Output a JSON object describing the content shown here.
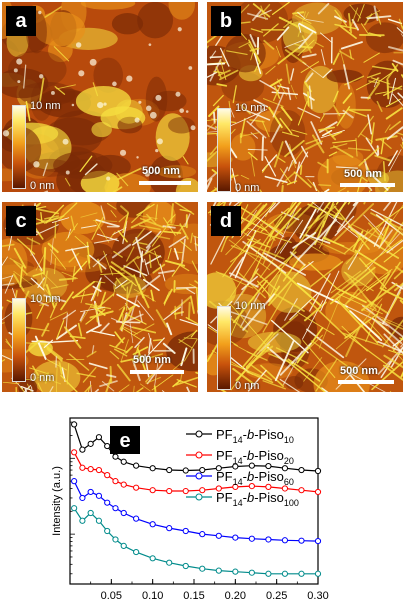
{
  "panels": [
    {
      "letter": "a",
      "colorbar_max": "10 nm",
      "colorbar_min": "0 nm",
      "scalebar": "500 nm",
      "texture": "granular",
      "fiber_density": 0.05
    },
    {
      "letter": "b",
      "colorbar_max": "10 nm",
      "colorbar_min": "0 nm",
      "scalebar": "500 nm",
      "texture": "fibrillar",
      "fiber_density": 0.8
    },
    {
      "letter": "c",
      "colorbar_max": "10 nm",
      "colorbar_min": "0 nm",
      "scalebar": "500 nm",
      "texture": "fibrillar",
      "fiber_density": 1.0
    },
    {
      "letter": "d",
      "colorbar_max": "10 nm",
      "colorbar_min": "0 nm",
      "scalebar": "500 nm",
      "texture": "long-fibrillar",
      "fiber_density": 0.7
    }
  ],
  "colors": {
    "afm_dark": "#7a2a06",
    "afm_mid": "#c8620e",
    "afm_light": "#f7e040",
    "afm_highlight": "#fffbe6"
  },
  "chart_data": {
    "type": "line",
    "panel_letter": "e",
    "xlabel": "",
    "ylabel": "Intensity (a.u.)",
    "xlim": [
      0.0,
      0.3
    ],
    "xticks": [
      "0.05",
      "0.10",
      "0.15",
      "0.20",
      "0.25",
      "0.30"
    ],
    "legend_position": "top-right",
    "y_log_scale": true,
    "y_tick_labels_shown": false,
    "series": [
      {
        "name_main": "PF",
        "name_sub1": "14",
        "name_mid": "-b-Piso",
        "name_sub2": "10",
        "color": "#000000",
        "x": [
          0.005,
          0.015,
          0.025,
          0.035,
          0.045,
          0.055,
          0.065,
          0.08,
          0.1,
          0.12,
          0.14,
          0.16,
          0.18,
          0.2,
          0.22,
          0.24,
          0.26,
          0.28,
          0.3
        ],
        "y": [
          2.8,
          1.3,
          1.55,
          1.9,
          1.45,
          1.05,
          0.9,
          0.8,
          0.74,
          0.7,
          0.69,
          0.7,
          0.74,
          0.78,
          0.8,
          0.79,
          0.74,
          0.7,
          0.68
        ]
      },
      {
        "name_main": "PF",
        "name_sub1": "14",
        "name_mid": "-b-Piso",
        "name_sub2": "20",
        "color": "#ff0000",
        "x": [
          0.005,
          0.015,
          0.025,
          0.035,
          0.045,
          0.055,
          0.065,
          0.08,
          0.1,
          0.12,
          0.14,
          0.16,
          0.18,
          0.2,
          0.22,
          0.24,
          0.26,
          0.28,
          0.3
        ],
        "y": [
          1.2,
          0.75,
          0.72,
          0.7,
          0.6,
          0.5,
          0.45,
          0.41,
          0.38,
          0.37,
          0.37,
          0.38,
          0.4,
          0.42,
          0.43,
          0.42,
          0.4,
          0.38,
          0.36
        ]
      },
      {
        "name_main": "PF",
        "name_sub1": "14",
        "name_mid": "-b-Piso",
        "name_sub2": "60",
        "color": "#0000ff",
        "x": [
          0.005,
          0.015,
          0.025,
          0.035,
          0.045,
          0.055,
          0.065,
          0.08,
          0.1,
          0.12,
          0.14,
          0.16,
          0.18,
          0.2,
          0.22,
          0.24,
          0.26,
          0.28,
          0.3
        ],
        "y": [
          0.5,
          0.3,
          0.36,
          0.32,
          0.26,
          0.22,
          0.19,
          0.16,
          0.135,
          0.12,
          0.11,
          0.1,
          0.095,
          0.09,
          0.087,
          0.085,
          0.083,
          0.082,
          0.081
        ]
      },
      {
        "name_main": "PF",
        "name_sub1": "14",
        "name_mid": "-b-Piso",
        "name_sub2": "100",
        "color": "#008b8b",
        "x": [
          0.005,
          0.015,
          0.025,
          0.035,
          0.045,
          0.055,
          0.065,
          0.08,
          0.1,
          0.12,
          0.14,
          0.16,
          0.18,
          0.2,
          0.22,
          0.24,
          0.26,
          0.28,
          0.3
        ],
        "y": [
          0.22,
          0.15,
          0.19,
          0.15,
          0.11,
          0.085,
          0.07,
          0.058,
          0.048,
          0.042,
          0.038,
          0.035,
          0.033,
          0.032,
          0.031,
          0.03,
          0.03,
          0.03,
          0.03
        ]
      }
    ]
  }
}
